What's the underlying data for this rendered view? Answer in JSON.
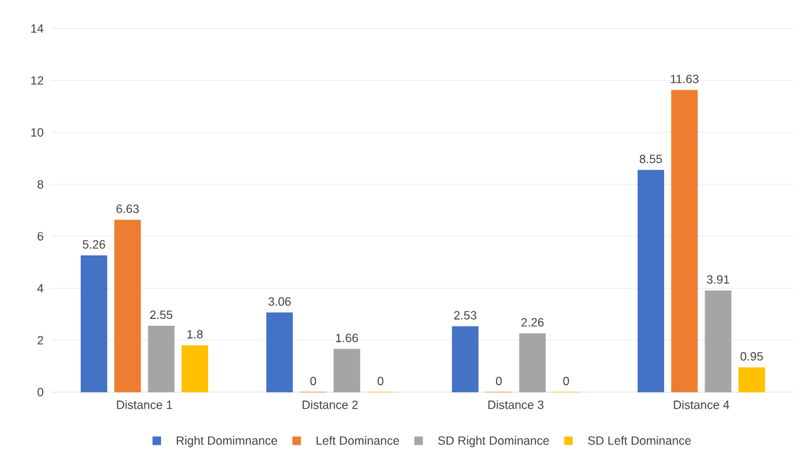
{
  "chart_data": {
    "type": "bar",
    "categories": [
      "Distance 1",
      "Distance 2",
      "Distance 3",
      "Distance 4"
    ],
    "series": [
      {
        "name": "Right Domimnance",
        "color": "#4472c4",
        "values": [
          5.26,
          3.06,
          2.53,
          8.55
        ]
      },
      {
        "name": "Left Dominance",
        "color": "#ed7d31",
        "values": [
          6.63,
          0,
          0,
          11.63
        ]
      },
      {
        "name": "SD Right Dominance",
        "color": "#a5a5a5",
        "values": [
          2.55,
          1.66,
          2.26,
          3.91
        ]
      },
      {
        "name": "SD Left Dominance",
        "color": "#ffc000",
        "values": [
          1.8,
          0,
          0,
          0.95
        ]
      }
    ],
    "ylim": [
      0,
      14
    ],
    "yticks": [
      0,
      2,
      4,
      6,
      8,
      10,
      12,
      14
    ],
    "grid": "y",
    "legend": "bottom",
    "data_labels": true
  }
}
